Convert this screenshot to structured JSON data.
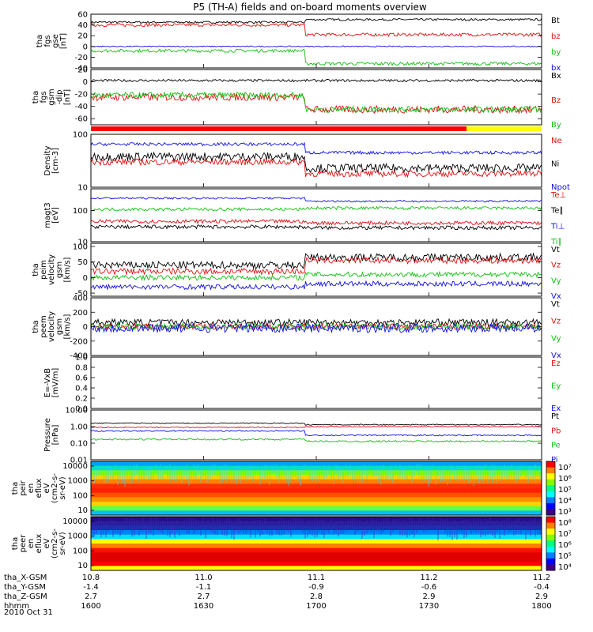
{
  "chart_data": {
    "type": "line",
    "title": "P5 (TH-A) fields and on-board moments overview",
    "time_axis": {
      "ticks": [
        "1600",
        "1630",
        "1700",
        "1730",
        "1800"
      ],
      "label": "hhmm",
      "date": "2010 Oct 31",
      "range": [
        "1600",
        "1800"
      ]
    },
    "ephemeris": [
      {
        "name": "tha_X-GSM",
        "values": [
          "10.8",
          "11.0",
          "11.1",
          "11.2",
          "11.2"
        ]
      },
      {
        "name": "tha_Y-GSM",
        "values": [
          "-1.4",
          "-1.1",
          "-0.9",
          "-0.6",
          "-0.4"
        ]
      },
      {
        "name": "tha_Z-GSM",
        "values": [
          "2.7",
          "2.7",
          "2.8",
          "2.9",
          "2.9"
        ]
      }
    ],
    "panels": [
      {
        "ylabel": [
          "tha",
          "fgs",
          "gse",
          "[nT]"
        ],
        "yticks": [
          "60",
          "40",
          "20",
          "0",
          "-20",
          "-40"
        ],
        "ylim": [
          -40,
          60
        ],
        "series": [
          {
            "name": "Bt",
            "color": "#000000",
            "before": 45,
            "after": 50,
            "noise": 2
          },
          {
            "name": "bz",
            "color": "#e01010",
            "before": 40,
            "after": 22,
            "noise": 3
          },
          {
            "name": "by",
            "color": "#10c010",
            "before": -8,
            "after": -32,
            "noise": 3
          },
          {
            "name": "bx",
            "color": "#1010e0",
            "before": 0,
            "after": 0,
            "noise": 1
          }
        ]
      },
      {
        "ylabel": [
          "tha",
          "fgs",
          "gsm",
          "-dip",
          "[nT]"
        ],
        "yticks": [
          "20",
          "0",
          "-20",
          "-40",
          "-60"
        ],
        "ylim": [
          -70,
          20
        ],
        "series": [
          {
            "name": "Bx",
            "color": "#000000",
            "before": 2,
            "after": 2,
            "noise": 2
          },
          {
            "name": "Bz",
            "color": "#e01010",
            "before": -25,
            "after": -45,
            "noise": 6
          },
          {
            "name": "By",
            "color": "#10c010",
            "before": -22,
            "after": -45,
            "noise": 5
          }
        ]
      },
      {
        "ylabel": [
          "Density",
          "[cm-3]"
        ],
        "yticks": [
          "100",
          "10"
        ],
        "scale": "log",
        "ylim": [
          10,
          100
        ],
        "series": [
          {
            "name": "Ne",
            "color": "#e01010",
            "before": 30,
            "after": 18,
            "noise": 0.06
          },
          {
            "name": "Ni",
            "color": "#000000",
            "before": 38,
            "after": 23,
            "noise": 0.08
          },
          {
            "name": "Npot",
            "color": "#1010e0",
            "before": 65,
            "after": 45,
            "noise": 0.03
          }
        ]
      },
      {
        "ylabel": [
          "magt3",
          "[eV]"
        ],
        "yticks": [
          "100",
          "10"
        ],
        "scale": "log",
        "ylim": [
          10,
          500
        ],
        "series": [
          {
            "name": "Te⊥",
            "color": "#e01010",
            "before": 45,
            "after": 40,
            "noise": 0.06
          },
          {
            "name": "Te∥",
            "color": "#000000",
            "before": 30,
            "after": 28,
            "noise": 0.06
          },
          {
            "name": "Ti⊥",
            "color": "#1010e0",
            "before": 250,
            "after": 200,
            "noise": 0.03
          },
          {
            "name": "Ti∥",
            "color": "#10c010",
            "before": 110,
            "after": 120,
            "noise": 0.05
          }
        ]
      },
      {
        "ylabel": [
          "tha",
          "peim",
          "velocity",
          "gsm",
          "[km/s]"
        ],
        "yticks": [
          "100",
          "50",
          "0",
          "-50"
        ],
        "ylim": [
          -60,
          110
        ],
        "series": [
          {
            "name": "Vt",
            "color": "#000000",
            "before": 40,
            "after": 65,
            "noise": 12
          },
          {
            "name": "Vz",
            "color": "#e01010",
            "before": 20,
            "after": 55,
            "noise": 10
          },
          {
            "name": "Vy",
            "color": "#10c010",
            "before": 0,
            "after": 10,
            "noise": 8
          },
          {
            "name": "Vx",
            "color": "#1010e0",
            "before": -30,
            "after": -20,
            "noise": 8
          }
        ]
      },
      {
        "ylabel": [
          "tha",
          "peem",
          "velocity",
          "gsm",
          "[km/s]"
        ],
        "yticks": [
          "400",
          "200",
          "0",
          "-200",
          "-400"
        ],
        "ylim": [
          -400,
          400
        ],
        "series": [
          {
            "name": "Vt",
            "color": "#000000",
            "before": 60,
            "after": 60,
            "noise": 45
          },
          {
            "name": "Vz",
            "color": "#e01010",
            "before": 0,
            "after": 0,
            "noise": 40
          },
          {
            "name": "Vy",
            "color": "#10c010",
            "before": 0,
            "after": 0,
            "noise": 40
          },
          {
            "name": "Vx",
            "color": "#1010e0",
            "before": -20,
            "after": -20,
            "noise": 60
          }
        ]
      },
      {
        "ylabel": [
          "E=-VxB",
          "[mV/m]"
        ],
        "yticks": [
          "1.0",
          "0.8",
          "0.6",
          "0.4",
          "0.2",
          "0.0"
        ],
        "ylim": [
          0,
          1
        ],
        "series": [
          {
            "name": "Ez",
            "color": "#e01010"
          },
          {
            "name": "Ey",
            "color": "#10c010"
          },
          {
            "name": "Ex",
            "color": "#1010e0"
          }
        ]
      },
      {
        "ylabel": [
          "Pressure",
          "[nPa]"
        ],
        "yticks": [
          "10.00",
          "1.00",
          "0.10",
          "0.01"
        ],
        "scale": "log",
        "ylim": [
          0.01,
          10
        ],
        "series": [
          {
            "name": "Pt",
            "color": "#000000",
            "before": 1.6,
            "after": 1.3,
            "noise": 0.03
          },
          {
            "name": "Pb",
            "color": "#e01010",
            "before": 0.9,
            "after": 1.0,
            "noise": 0.03
          },
          {
            "name": "Pe",
            "color": "#10c010",
            "before": 0.17,
            "after": 0.13,
            "noise": 0.05
          },
          {
            "name": "Pi",
            "color": "#1010e0",
            "before": 0.55,
            "after": 0.3,
            "noise": 0.04
          }
        ]
      },
      {
        "type": "heatmap",
        "ylabel": [
          "tha",
          "peir",
          "en",
          "eflux",
          "eV",
          "(cm2-s-",
          "sr-eV)"
        ],
        "yticks": [
          "10000",
          "1000",
          "100",
          "10"
        ],
        "colorbar_ticks": [
          "10⁷",
          "10⁶",
          "10⁵",
          "10⁴",
          "10³"
        ]
      },
      {
        "type": "heatmap",
        "ylabel": [
          "tha",
          "peer",
          "en",
          "eflux",
          "eV",
          "(cm2-s-",
          "sr-eV)"
        ],
        "yticks": [
          "10000",
          "1000",
          "100",
          "10"
        ],
        "colorbar_ticks": [
          "10⁸",
          "10⁷",
          "10⁶",
          "10⁵",
          "10⁴"
        ]
      }
    ],
    "status_bar": {
      "colors": [
        "#ff0000",
        "#ffff00"
      ],
      "switch_time": "1740"
    }
  }
}
